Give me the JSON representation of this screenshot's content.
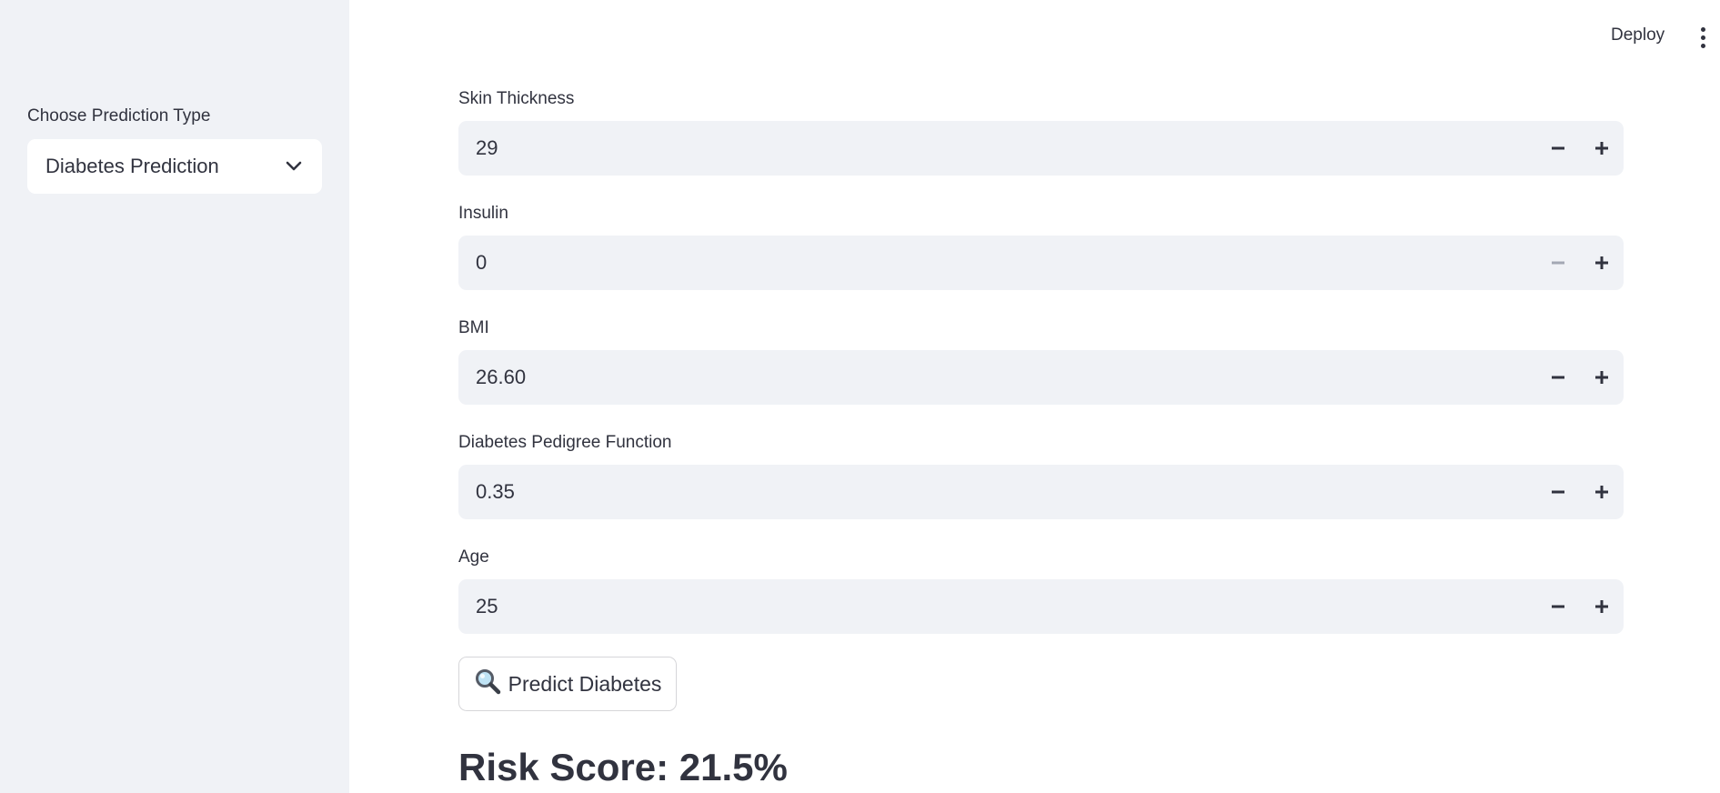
{
  "sidebar": {
    "label": "Choose Prediction Type",
    "select": {
      "value": "Diabetes Prediction",
      "icon": "chevron-down-icon"
    }
  },
  "header": {
    "deploy_label": "Deploy",
    "menu_icon": "vertical-ellipsis-icon"
  },
  "fields": [
    {
      "label": "Skin Thickness",
      "value": "29",
      "minus_disabled": false
    },
    {
      "label": "Insulin",
      "value": "0",
      "minus_disabled": true
    },
    {
      "label": "BMI",
      "value": "26.60",
      "minus_disabled": false
    },
    {
      "label": "Diabetes Pedigree Function",
      "value": "0.35",
      "minus_disabled": false
    },
    {
      "label": "Age",
      "value": "25",
      "minus_disabled": false
    }
  ],
  "predict_button": {
    "icon": "magnifying-glass-icon",
    "label": "Predict Diabetes"
  },
  "result": {
    "risk_score_text": "Risk Score: 21.5%"
  },
  "colors": {
    "sidebar_bg": "#f0f2f6",
    "input_bg": "#f0f2f6",
    "text": "#31333f",
    "disabled": "#a3a8b4"
  }
}
